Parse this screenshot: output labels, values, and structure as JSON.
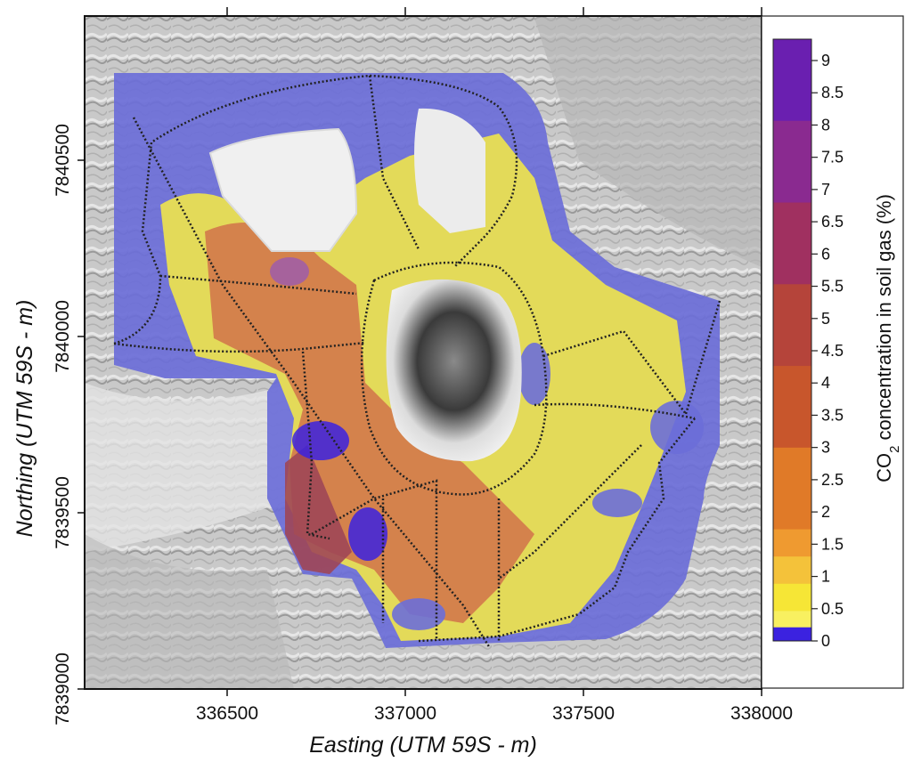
{
  "map": {
    "xaxis": {
      "title": "Easting (UTM 59S - m)",
      "ticks": [
        "336500",
        "337000",
        "337500",
        "338000"
      ]
    },
    "yaxis": {
      "title": "Northing (UTM 59S - m)",
      "ticks": [
        "7840500",
        "7840000",
        "7839500",
        "7839000"
      ]
    },
    "colorbar": {
      "title_prefix": "CO",
      "title_sub": "2",
      "title_suffix": " concentration in soil gas (%)",
      "labels": [
        "9",
        "8.5",
        "8",
        "7.5",
        "7",
        "6.5",
        "6",
        "5.5",
        "5",
        "4.5",
        "4",
        "3.5",
        "3",
        "2.5",
        "2",
        "1.5",
        "1",
        "0.5",
        "0"
      ],
      "colors": [
        "#6a1fb0",
        "#8a2a90",
        "#a03060",
        "#b5443a",
        "#c8562c",
        "#e07a28",
        "#ef9a30",
        "#f4c23a",
        "#f6e636",
        "#f8f060",
        "#3b22e0"
      ]
    },
    "colors": {
      "background_relief": "#c8c8c8",
      "low_zone": "#6b6ed8",
      "mid_zone": "#e9df52",
      "high_zone": "#d2784a",
      "peak_zone": "#9e4656",
      "survey_track": "#222222"
    }
  }
}
